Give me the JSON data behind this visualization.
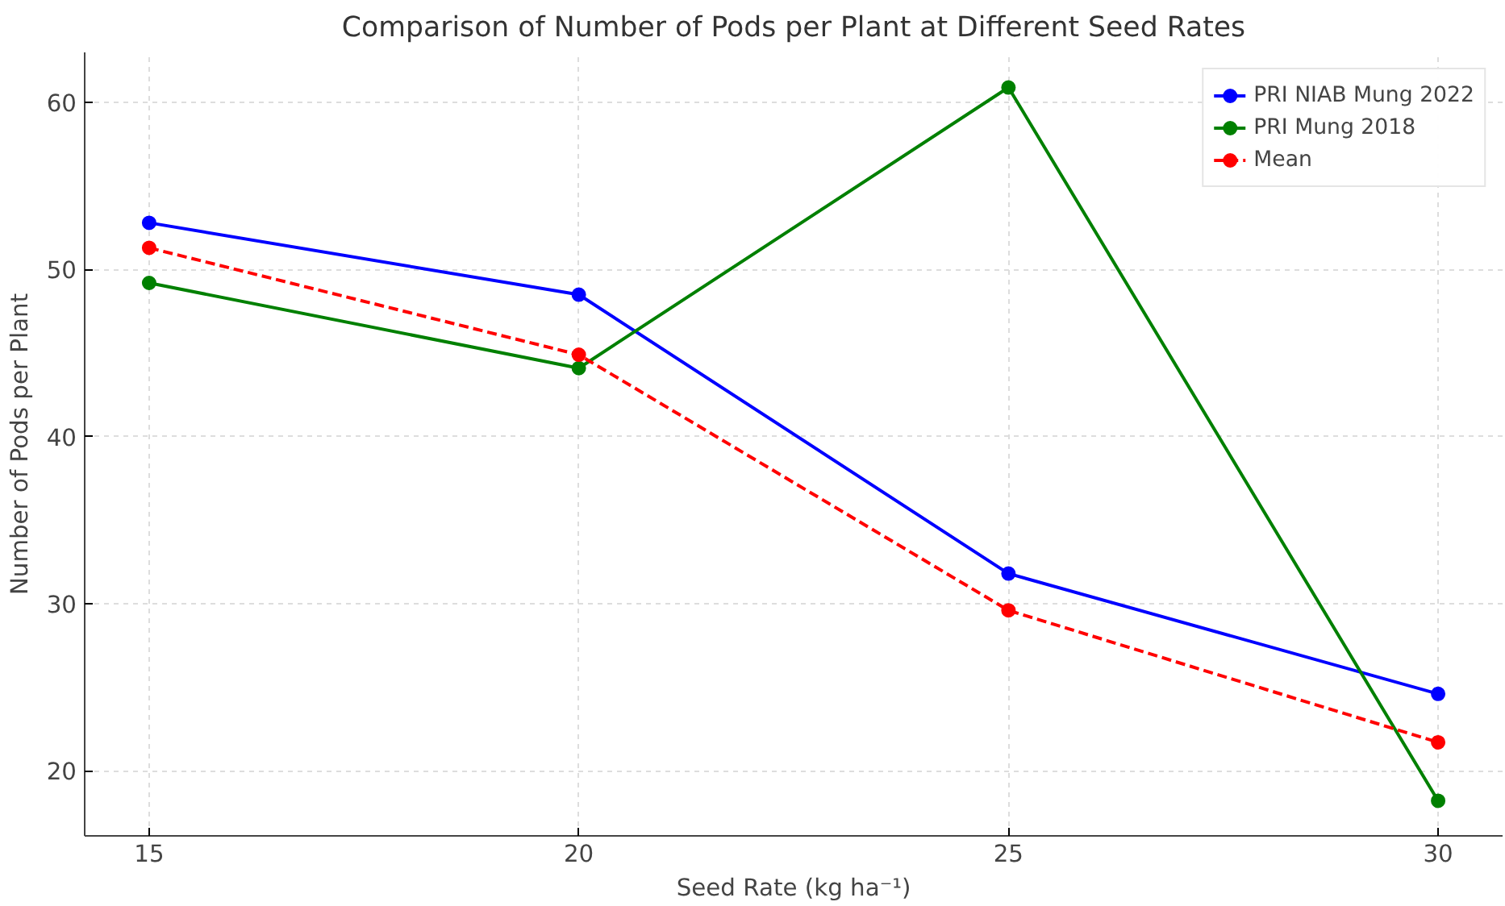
{
  "chart_data": {
    "type": "line",
    "title": "Comparison of Number of Pods per Plant at Different Seed Rates",
    "xlabel": "Seed Rate (kg ha⁻¹)",
    "ylabel": "Number of Pods per Plant",
    "x": [
      15,
      20,
      25,
      30
    ],
    "series": [
      {
        "name": "PRI NIAB Mung 2022",
        "color": "#0000ff",
        "values": [
          52.8,
          48.5,
          31.8,
          24.6
        ],
        "line_style": "solid"
      },
      {
        "name": "PRI Mung 2018",
        "color": "#008000",
        "values": [
          49.2,
          44.1,
          60.9,
          18.2
        ],
        "line_style": "solid"
      },
      {
        "name": "Mean",
        "color": "#ff0000",
        "values": [
          51.3,
          44.9,
          29.6,
          21.7
        ],
        "line_style": "dashed"
      }
    ],
    "marker": "circle",
    "xlim": [
      14.25,
      30.75
    ],
    "ylim": [
      16.1,
      63.0
    ],
    "xticks": [
      15,
      20,
      25,
      30
    ],
    "yticks": [
      20,
      30,
      40,
      50,
      60
    ],
    "grid": true,
    "legend": "top right"
  }
}
